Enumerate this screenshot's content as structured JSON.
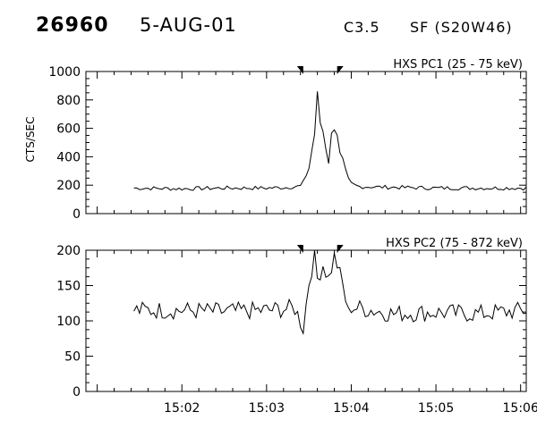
{
  "header": {
    "id": "26960",
    "date": "5-AUG-01",
    "class": "C3.5",
    "location": "SF (S20W46)"
  },
  "chart_data": [
    {
      "type": "line",
      "title": "HXS PC1 (25 - 75 keV)",
      "ylabel": "CTS/SEC",
      "xlabel": "",
      "ylim": [
        0,
        1000
      ],
      "yticks": [
        0,
        200,
        400,
        600,
        800,
        1000
      ],
      "xlim": [
        "15:01",
        "15:06"
      ],
      "xticks": [
        "15:02",
        "15:03",
        "15:04",
        "15:05",
        "15:06"
      ],
      "markers": [
        "15:03:26",
        "15:03:50"
      ],
      "series": [
        {
          "x": [
            "15:01:26",
            "15:02:00",
            "15:02:30",
            "15:03:00",
            "15:03:15",
            "15:03:25",
            "15:03:30",
            "15:03:34",
            "15:03:36",
            "15:03:38",
            "15:03:40",
            "15:03:42",
            "15:03:44",
            "15:03:46",
            "15:03:48",
            "15:03:50",
            "15:03:52",
            "15:03:54",
            "15:03:56",
            "15:03:58",
            "15:04:00",
            "15:04:05",
            "15:04:30",
            "15:05:00",
            "15:05:30",
            "15:06:04"
          ],
          "values": [
            180,
            175,
            180,
            180,
            185,
            195,
            320,
            560,
            850,
            640,
            580,
            460,
            360,
            560,
            600,
            560,
            420,
            380,
            300,
            240,
            210,
            190,
            185,
            180,
            180,
            180
          ]
        }
      ]
    },
    {
      "type": "line",
      "title": "HXS PC2 (75 - 872 keV)",
      "ylabel": "",
      "xlabel": "",
      "ylim": [
        0,
        200
      ],
      "yticks": [
        0,
        50,
        100,
        150,
        200
      ],
      "xlim": [
        "15:01",
        "15:06"
      ],
      "xticks": [
        "15:02",
        "15:03",
        "15:04",
        "15:05",
        "15:06"
      ],
      "markers": [
        "15:03:26",
        "15:03:50"
      ],
      "series": [
        {
          "x": [
            "15:01:26",
            "15:02:00",
            "15:02:30",
            "15:03:00",
            "15:03:20",
            "15:03:26",
            "15:03:30",
            "15:03:34",
            "15:03:36",
            "15:03:40",
            "15:03:44",
            "15:03:48",
            "15:03:50",
            "15:03:54",
            "15:03:58",
            "15:04:00",
            "15:04:30",
            "15:05:00",
            "15:05:30",
            "15:06:04"
          ],
          "values": [
            115,
            115,
            113,
            115,
            118,
            90,
            155,
            195,
            160,
            180,
            160,
            190,
            180,
            150,
            110,
            120,
            110,
            112,
            110,
            115
          ]
        }
      ]
    }
  ]
}
